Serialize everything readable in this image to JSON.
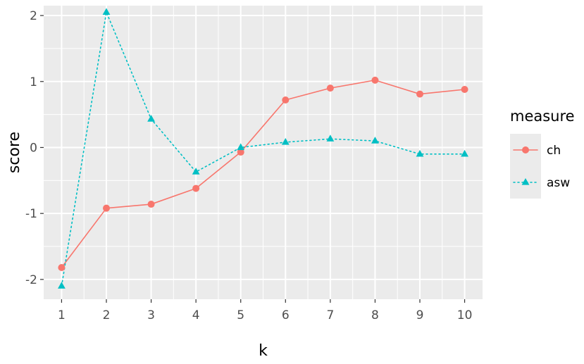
{
  "chart_data": {
    "type": "line",
    "xlabel": "k",
    "ylabel": "score",
    "x": [
      1,
      2,
      3,
      4,
      5,
      6,
      7,
      8,
      9,
      10
    ],
    "xlim": [
      0.6,
      10.4
    ],
    "ylim": [
      -2.3,
      2.15
    ],
    "xticks": [
      "1",
      "2",
      "3",
      "4",
      "5",
      "6",
      "7",
      "8",
      "9",
      "10"
    ],
    "yticks": [
      {
        "value": 2,
        "label": "2"
      },
      {
        "value": 1,
        "label": "1"
      },
      {
        "value": 0,
        "label": "0"
      },
      {
        "value": -1,
        "label": "-1"
      },
      {
        "value": -2,
        "label": "-2"
      }
    ],
    "grid": true,
    "legend": {
      "title": "measure",
      "position": "right"
    },
    "series": [
      {
        "name": "ch",
        "color": "#F8766D",
        "line_style": "solid",
        "marker": "circle",
        "values": [
          -1.82,
          -0.92,
          -0.86,
          -0.62,
          -0.07,
          0.72,
          0.9,
          1.02,
          0.81,
          0.88
        ]
      },
      {
        "name": "asw",
        "color": "#00BFC4",
        "line_style": "dotted",
        "marker": "triangle",
        "values": [
          -2.1,
          2.05,
          0.43,
          -0.37,
          0.0,
          0.08,
          0.13,
          0.1,
          -0.1,
          -0.1
        ]
      }
    ]
  }
}
